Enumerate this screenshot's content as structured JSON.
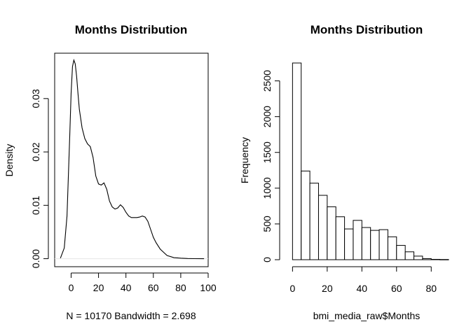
{
  "chart_data": [
    {
      "type": "line",
      "title": "Months Distribution",
      "xlabel": "N = 10170   Bandwidth = 2.698",
      "ylabel": "Density",
      "xlim": [
        -12,
        100
      ],
      "ylim": [
        -0.0015,
        0.0385
      ],
      "xticks": [
        0,
        20,
        40,
        60,
        80,
        100
      ],
      "yticks": [
        0.0,
        0.01,
        0.02,
        0.03
      ],
      "ytick_labels": [
        "0.00",
        "0.01",
        "0.02",
        "0.03"
      ],
      "box": true,
      "grid": false,
      "x": [
        -7.8,
        -5,
        -3,
        -1,
        0,
        1,
        2,
        3,
        4,
        5,
        6,
        8,
        10,
        12,
        14,
        16,
        18,
        20,
        22,
        24,
        26,
        28,
        30,
        32,
        34,
        36,
        38,
        40,
        42,
        44,
        46,
        48,
        50,
        52,
        54,
        56,
        58,
        60,
        62,
        65,
        70,
        75,
        80,
        85,
        90,
        97
      ],
      "y": [
        0.0001,
        0.002,
        0.008,
        0.023,
        0.031,
        0.036,
        0.0372,
        0.0365,
        0.0342,
        0.031,
        0.028,
        0.0245,
        0.0225,
        0.0215,
        0.021,
        0.019,
        0.0155,
        0.014,
        0.0138,
        0.0142,
        0.013,
        0.0108,
        0.0097,
        0.0093,
        0.0095,
        0.0101,
        0.0096,
        0.0087,
        0.008,
        0.0077,
        0.0077,
        0.0077,
        0.0078,
        0.008,
        0.0078,
        0.007,
        0.0055,
        0.004,
        0.003,
        0.0018,
        0.0006,
        0.0002,
        0.0001,
        3e-05,
        1e-05,
        0.0
      ]
    },
    {
      "type": "bar",
      "title": "Months Distribution",
      "xlabel": "bmi_media_raw$Months",
      "ylabel": "Frequency",
      "xlim": [
        -5,
        90
      ],
      "ylim": [
        0,
        2750
      ],
      "xticks": [
        0,
        20,
        40,
        60,
        80
      ],
      "yticks": [
        0,
        500,
        1000,
        1500,
        2000,
        2500
      ],
      "box": false,
      "grid": false,
      "bin_edges": [
        0,
        5,
        10,
        15,
        20,
        25,
        30,
        35,
        40,
        45,
        50,
        55,
        60,
        65,
        70,
        75,
        80,
        85,
        90
      ],
      "values": [
        2750,
        1240,
        1070,
        900,
        740,
        600,
        430,
        550,
        450,
        410,
        420,
        320,
        200,
        110,
        50,
        15,
        5,
        3
      ]
    }
  ]
}
